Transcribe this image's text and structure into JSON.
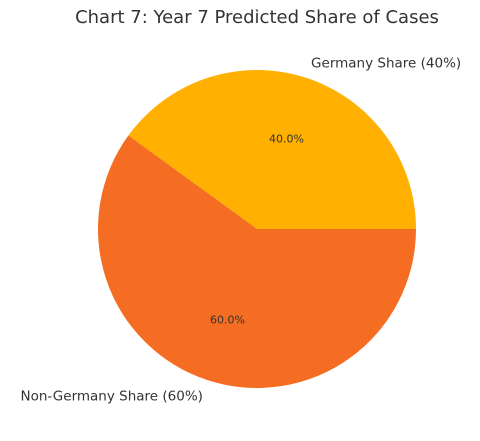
{
  "chart_data": {
    "type": "pie",
    "title": "Chart 7: Year 7 Predicted Share of Cases",
    "slices": [
      {
        "label": "Germany Share (40%)",
        "value": 40,
        "pct_label": "40.0%",
        "color": "#FFB000"
      },
      {
        "label": "Non-Germany Share (60%)",
        "value": 60,
        "pct_label": "60.0%",
        "color": "#F46D22"
      }
    ],
    "start_angle_deg": 0,
    "direction": "counterclockwise"
  }
}
